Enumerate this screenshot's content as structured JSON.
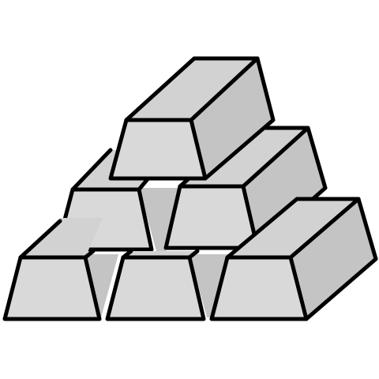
{
  "illustration": {
    "subject": "stacked-metal-ingots",
    "ingot_count": 6,
    "rows": [
      1,
      2,
      3
    ],
    "colors": {
      "background": "#ffffff",
      "front": "#d9d9d9",
      "top": "#d2d2d2",
      "side": "#c4c4c4",
      "stroke": "#000000"
    }
  }
}
